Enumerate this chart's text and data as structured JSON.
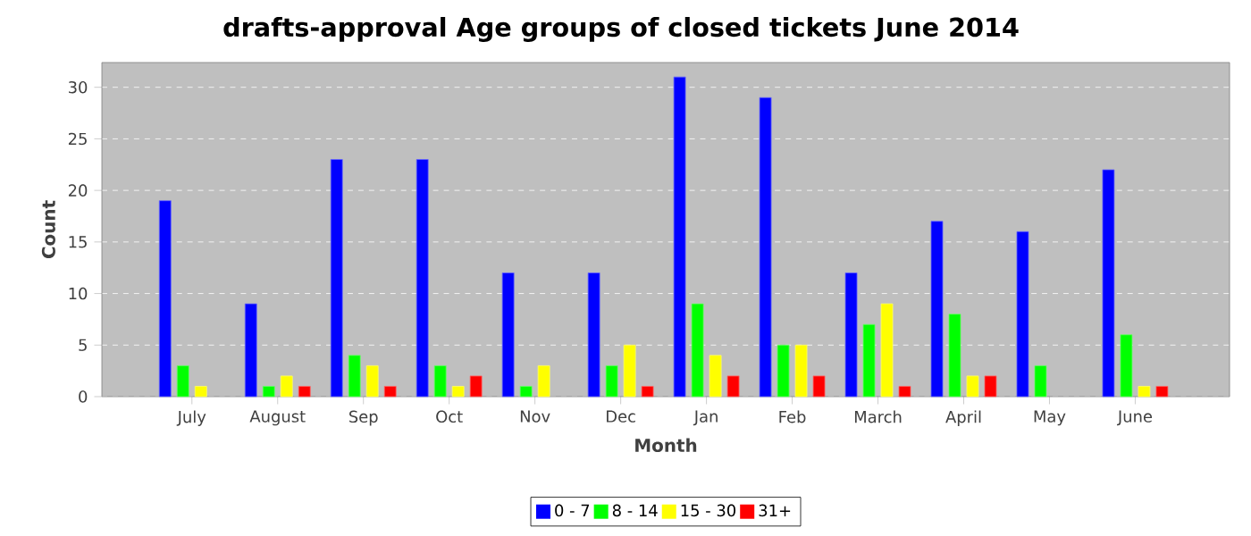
{
  "chart_data": {
    "type": "bar",
    "title": "drafts-approval Age groups of closed tickets June 2014",
    "xlabel": "Month",
    "ylabel": "Count",
    "categories": [
      "July",
      "August",
      "Sep",
      "Oct",
      "Nov",
      "Dec",
      "Jan",
      "Feb",
      "March",
      "April",
      "May",
      "June"
    ],
    "series": [
      {
        "name": "0 - 7",
        "color": "#0000ff",
        "values": [
          19,
          9,
          23,
          23,
          12,
          12,
          31,
          29,
          12,
          17,
          16,
          22
        ]
      },
      {
        "name": "8 - 14",
        "color": "#00ff00",
        "values": [
          3,
          1,
          4,
          3,
          1,
          3,
          9,
          5,
          7,
          8,
          3,
          6
        ]
      },
      {
        "name": "15 - 30",
        "color": "#ffff00",
        "values": [
          1,
          2,
          3,
          1,
          3,
          5,
          4,
          5,
          9,
          2,
          null,
          1
        ]
      },
      {
        "name": "31+",
        "color": "#ff0000",
        "values": [
          null,
          1,
          1,
          2,
          null,
          1,
          2,
          2,
          1,
          2,
          null,
          1
        ]
      }
    ],
    "ylim": [
      0,
      32.4
    ],
    "yticks": [
      0,
      5,
      10,
      15,
      20,
      25,
      30
    ],
    "grid": "y",
    "legend": "bottom"
  }
}
